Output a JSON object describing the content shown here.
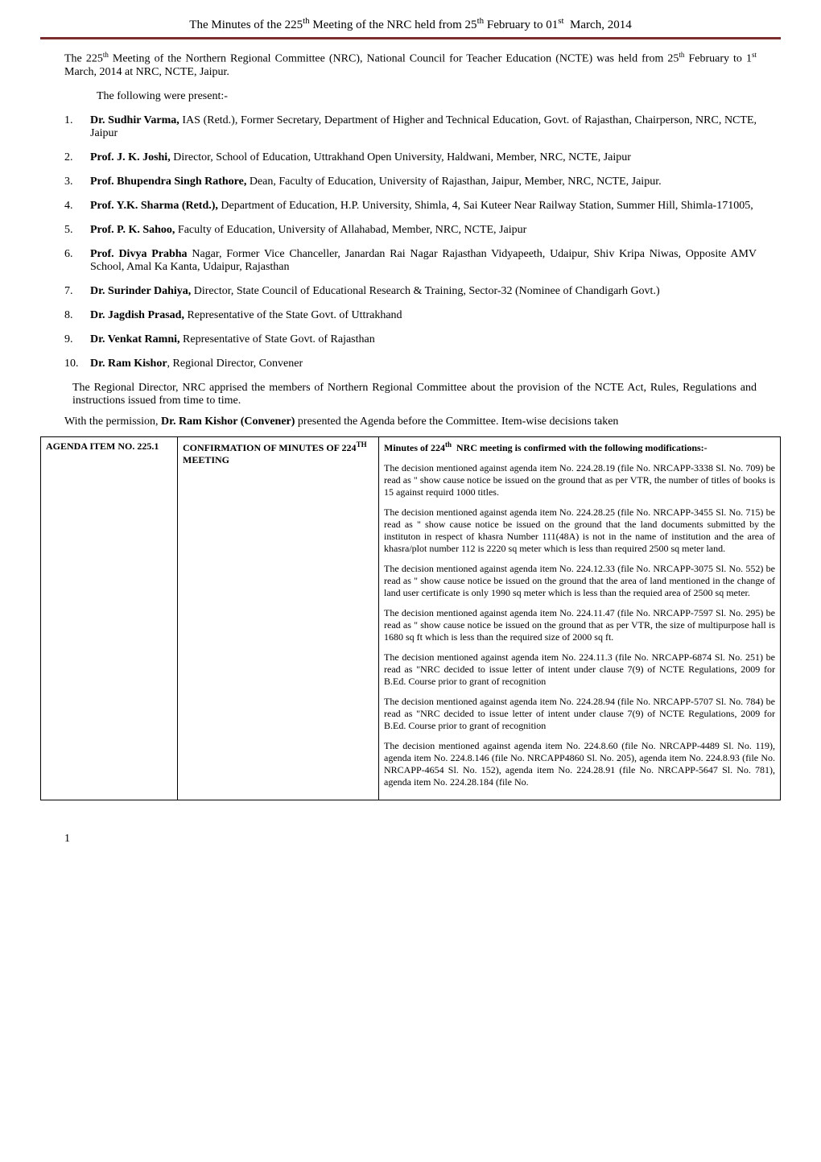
{
  "header": "The Minutes of the 225th Meeting of the NRC held from 25th February to 01st  March, 2014",
  "intro": "The 225th Meeting of the Northern Regional Committee (NRC), National Council for Teacher Education (NCTE) was held from 25th February to 1st March, 2014 at NRC, NCTE, Jaipur.",
  "present_line": "The following were present:-",
  "attendees": [
    {
      "num": "1.",
      "bold": "Dr. Sudhir Varma,",
      "rest": " IAS (Retd.), Former Secretary, Department of Higher and Technical Education, Govt. of Rajasthan, Chairperson, NRC, NCTE, Jaipur"
    },
    {
      "num": "2.",
      "bold": "Prof. J. K. Joshi,",
      "rest": " Director, School of Education, Uttrakhand Open University, Haldwani, Member, NRC, NCTE, Jaipur"
    },
    {
      "num": "3.",
      "bold": "Prof. Bhupendra Singh Rathore,",
      "rest": " Dean, Faculty of Education, University of Rajasthan, Jaipur, Member, NRC, NCTE, Jaipur."
    },
    {
      "num": "4.",
      "bold": "Prof. Y.K. Sharma (Retd.),",
      "rest": " Department of Education, H.P. University, Shimla, 4, Sai Kuteer Near Railway Station, Summer Hill, Shimla-171005,"
    },
    {
      "num": "5.",
      "bold": "Prof. P. K. Sahoo,",
      "rest": " Faculty of Education, University of Allahabad, Member, NRC, NCTE, Jaipur"
    },
    {
      "num": "6.",
      "bold": "Prof. Divya Prabha",
      "rest": " Nagar, Former Vice Chanceller, Janardan Rai Nagar Rajasthan Vidyapeeth, Udaipur, Shiv Kripa Niwas, Opposite AMV School, Amal Ka Kanta, Udaipur, Rajasthan"
    },
    {
      "num": "7.",
      "bold": "Dr. Surinder Dahiya,",
      "rest": " Director, State Council of Educational Research & Training, Sector-32 (Nominee of Chandigarh Govt.)"
    },
    {
      "num": "8.",
      "bold": "Dr. Jagdish Prasad,",
      "rest": " Representative of the State Govt. of Uttrakhand"
    },
    {
      "num": "9.",
      "bold": "Dr. Venkat Ramni,",
      "rest": " Representative of State Govt. of Rajasthan"
    },
    {
      "num": "10.",
      "bold": "Dr. Ram Kishor",
      "rest": ", Regional Director, Convener"
    }
  ],
  "closing1": "The Regional Director, NRC apprised the members of Northern Regional Committee about the provision of the NCTE Act, Rules, Regulations and instructions issued from time to time.",
  "closing2_pre": "With the permission, ",
  "closing2_bold": "Dr. Ram Kishor (Convener) ",
  "closing2_post": "presented the Agenda before the Committee.  Item-wise decisions taken",
  "agenda": {
    "col1": "AGENDA ITEM NO. 225.1",
    "col2": "CONFIRMATION OF MINUTES OF 224TH MEETING",
    "minutes_head": "Minutes of 224th  NRC meeting  is confirmed  with  the following modifications:-",
    "paras": [
      "The decision mentioned  against  agenda  item  No. 224.28.19 (file No. NRCAPP-3338 Sl. No. 709) be read  as  \" show cause  notice be issued on the ground that  as per  VTR, the number of titles of books is 15 against requird 1000 titles.",
      "The decision mentioned  against  agenda  item  No. 224.28.25 (file No. NRCAPP-3455 Sl. No. 715) be read  as  \" show cause  notice be issued on the ground that  the  land documents submitted  by  the instituton  in respect  of  khasra Number 111(48A) is not  in the name of institution and  the area of khasra/plot  number 112 is 2220 sq meter which is less than required 2500 sq meter land.",
      "The decision mentioned  against  agenda  item  No. 224.12.33 (file No. NRCAPP-3075 Sl. No. 552) be read  as  \" show cause  notice be issued on the ground that  the  area of land  mentioned in the change of land user  certificate  is only 1990 sq meter  which  is  less  than  the  requied area of 2500 sq meter.",
      "The decision mentioned  against  agenda  item  No. 224.11.47 (file No. NRCAPP-7597 Sl. No. 295) be read  as  \" show cause  notice be issued on the ground that  as per VTR, the  size  of  multipurpose  hall is 1680 sq ft  which is less than the required size  of 2000 sq ft.",
      "The decision mentioned  against  agenda  item  No. 224.11.3 (file No. NRCAPP-6874 Sl. No. 251) be read  as  \"NRC decided to issue letter of  intent  under  clause  7(9)  of  NCTE  Regulations,  2009  for  B.Ed. Course prior to grant of recognition",
      "The decision mentioned  against  agenda  item  No. 224.28.94 (file No. NRCAPP-5707 Sl. No. 784) be read  as  \"NRC decided to issue letter of  intent  under  clause  7(9)  of  NCTE  Regulations,  2009  for  B.Ed. Course prior to grant of recognition",
      "The decision mentioned  against  agenda  item  No. 224.8.60  (file No. NRCAPP-4489  Sl.  No.  119),  agenda   item   No.  224.8.146  (file  No. NRCAPP4860  Sl.  No.  205),  agenda   item   No.  224.8.93  (file  No. NRCAPP-4654  Sl.  No.  152),  agenda   item   No.  224.28.91  (file  No. NRCAPP-5647  Sl.  No.  781),  agenda   item   No.  224.28.184  (file  No."
    ]
  },
  "page_num": "1",
  "colors": {
    "header_border": "#7c2e2e",
    "text": "#000000",
    "bg": "#ffffff"
  }
}
